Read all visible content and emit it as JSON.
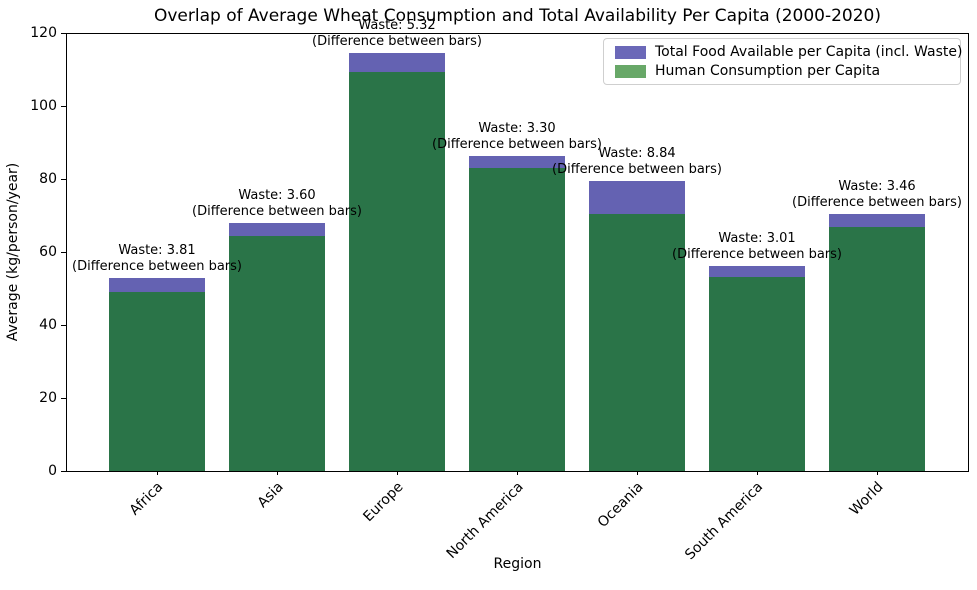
{
  "chart_data": {
    "type": "bar",
    "title": "Overlap of Average Wheat Consumption and Total Availability Per Capita (2000-2020)",
    "xlabel": "Region",
    "ylabel": "Average (kg/person/year)",
    "categories": [
      "Africa",
      "Asia",
      "Europe",
      "North America",
      "Oceania",
      "South America",
      "World"
    ],
    "series": [
      {
        "name": "Total Food Available per Capita (incl. Waste)",
        "color": "#6462b2",
        "legend_color": "#6b68b8",
        "values": [
          52.81,
          67.9,
          114.62,
          86.4,
          79.34,
          56.21,
          70.36
        ]
      },
      {
        "name": "Human Consumption per Capita",
        "color": "#2a7448",
        "legend_color": "#68a868",
        "values": [
          49.0,
          64.3,
          109.3,
          83.1,
          70.5,
          53.2,
          66.9
        ]
      }
    ],
    "waste_values": [
      3.81,
      3.6,
      5.32,
      3.3,
      8.84,
      3.01,
      3.46
    ],
    "annotations": [
      {
        "line1": "Waste: 3.81",
        "line2": "(Difference between bars)"
      },
      {
        "line1": "Waste: 3.60",
        "line2": "(Difference between bars)"
      },
      {
        "line1": "Waste: 5.32",
        "line2": "(Difference between bars)"
      },
      {
        "line1": "Waste: 3.30",
        "line2": "(Difference between bars)"
      },
      {
        "line1": "Waste: 8.84",
        "line2": "(Difference between bars)"
      },
      {
        "line1": "Waste: 3.01",
        "line2": "(Difference between bars)"
      },
      {
        "line1": "Waste: 3.46",
        "line2": "(Difference between bars)"
      }
    ],
    "y_ticks": [
      "0",
      "20",
      "40",
      "60",
      "80",
      "100",
      "120"
    ],
    "y_tick_values": [
      0,
      20,
      40,
      60,
      80,
      100,
      120
    ],
    "ylim": [
      0,
      120
    ],
    "legend_position": "upper right",
    "grid": false
  }
}
